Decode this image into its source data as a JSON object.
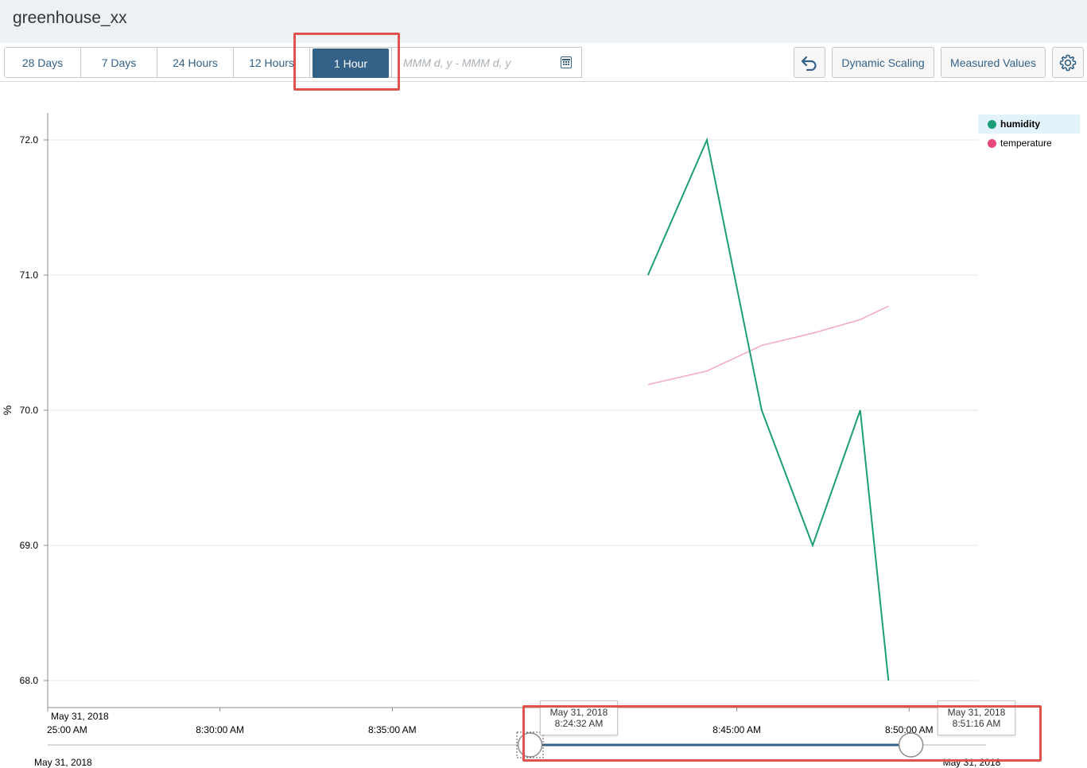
{
  "app": {
    "title": "greenhouse_xx"
  },
  "toolbar": {
    "ranges": [
      {
        "label": "28 Days",
        "active": false
      },
      {
        "label": "7 Days",
        "active": false
      },
      {
        "label": "24 Hours",
        "active": false
      },
      {
        "label": "12 Hours",
        "active": false
      },
      {
        "label": "1 Hour",
        "active": true
      }
    ],
    "date_range_placeholder": "MMM d, y - MMM d, y",
    "undo_icon": "undo-icon",
    "calendar_icon": "calendar-icon",
    "dynamic_scaling_label": "Dynamic Scaling",
    "measured_values_label": "Measured Values",
    "settings_icon": "gear-icon"
  },
  "colors": {
    "accent": "#346187",
    "humidity": "#1b9e77",
    "temperature": "#f4a6bd",
    "temperature_legend": "#e8477a",
    "highlight": "#e0524a"
  },
  "chart_data": {
    "type": "line",
    "ylabel": "%",
    "ylim": [
      67.8,
      72.2
    ],
    "yticks": [
      "72.0",
      "71.0",
      "70.0",
      "69.0",
      "68.0"
    ],
    "xlim_minutes": [
      25.0,
      52.0
    ],
    "x_date_label": "May 31, 2018",
    "xticks": [
      {
        "minute": 25.0,
        "label": "25:00 AM"
      },
      {
        "minute": 30.0,
        "label": "8:30:00 AM"
      },
      {
        "minute": 35.0,
        "label": "8:35:00 AM"
      },
      {
        "minute": 45.0,
        "label": "8:45:00 AM"
      },
      {
        "minute": 50.0,
        "label": "8:50:00 AM"
      }
    ],
    "legend_position": "top-right",
    "series": [
      {
        "name": "humidity",
        "x": [
          "8:42:25 AM",
          "8:44:08 AM",
          "8:45:43 AM",
          "8:47:12 AM",
          "8:48:35 AM",
          "8:49:24 AM"
        ],
        "x_minutes": [
          42.42,
          44.13,
          45.72,
          47.2,
          48.58,
          49.4
        ],
        "y": [
          71.0,
          72.0,
          70.0,
          69.0,
          70.0,
          68.0
        ]
      },
      {
        "name": "temperature",
        "x": [
          "8:42:25 AM",
          "8:44:08 AM",
          "8:45:43 AM",
          "8:47:12 AM",
          "8:48:35 AM",
          "8:49:24 AM"
        ],
        "x_minutes": [
          42.42,
          44.13,
          45.72,
          47.2,
          48.58,
          49.4
        ],
        "y": [
          70.19,
          70.29,
          70.48,
          70.57,
          70.67,
          70.77
        ]
      }
    ]
  },
  "slider": {
    "date_label": "May 31, 2018",
    "start": {
      "date": "May 31, 2018",
      "time": "8:24:32 AM",
      "fraction": 0.514
    },
    "end": {
      "date": "May 31, 2018",
      "time": "8:51:16 AM",
      "fraction": 0.92
    }
  }
}
